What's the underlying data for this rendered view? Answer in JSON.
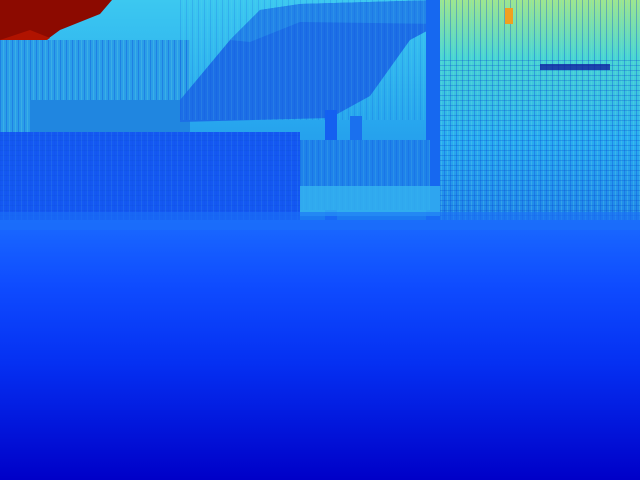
{
  "image": {
    "kind": "depth-map",
    "colormap": "jet",
    "palette": {
      "near": "#0000c8",
      "mid_near": "#0a3cff",
      "mid": "#1e78e6",
      "mid_far": "#28b4f0",
      "far": "#5ae6c8",
      "very_far": "#c8e650",
      "farthest": "#8c0a00"
    }
  }
}
